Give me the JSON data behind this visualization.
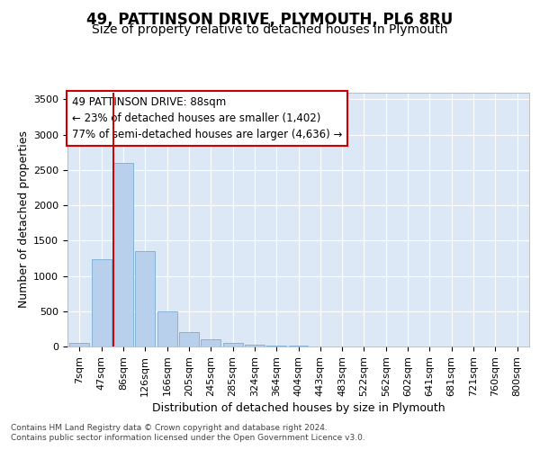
{
  "title": "49, PATTINSON DRIVE, PLYMOUTH, PL6 8RU",
  "subtitle": "Size of property relative to detached houses in Plymouth",
  "xlabel": "Distribution of detached houses by size in Plymouth",
  "ylabel": "Number of detached properties",
  "categories": [
    "7sqm",
    "47sqm",
    "86sqm",
    "126sqm",
    "166sqm",
    "205sqm",
    "245sqm",
    "285sqm",
    "324sqm",
    "364sqm",
    "404sqm",
    "443sqm",
    "483sqm",
    "522sqm",
    "562sqm",
    "602sqm",
    "641sqm",
    "681sqm",
    "721sqm",
    "760sqm",
    "800sqm"
  ],
  "values": [
    45,
    1230,
    2600,
    1350,
    500,
    200,
    105,
    50,
    30,
    18,
    10,
    5,
    3,
    0,
    0,
    0,
    0,
    0,
    0,
    0,
    0
  ],
  "bar_color": "#b8d0ec",
  "bar_edge_color": "#7aadd4",
  "vline_xidx": 2,
  "vline_color": "#cc0000",
  "annotation_line1": "49 PATTINSON DRIVE: 88sqm",
  "annotation_line2": "← 23% of detached houses are smaller (1,402)",
  "annotation_line3": "77% of semi-detached houses are larger (4,636) →",
  "annotation_box_facecolor": "#ffffff",
  "annotation_box_edgecolor": "#cc0000",
  "ylim": [
    0,
    3600
  ],
  "yticks": [
    0,
    500,
    1000,
    1500,
    2000,
    2500,
    3000,
    3500
  ],
  "plot_bg_color": "#dce8f5",
  "fig_bg_color": "#ffffff",
  "grid_color": "#ffffff",
  "footer1": "Contains HM Land Registry data © Crown copyright and database right 2024.",
  "footer2": "Contains public sector information licensed under the Open Government Licence v3.0.",
  "title_fontsize": 12,
  "subtitle_fontsize": 10,
  "axis_label_fontsize": 9,
  "tick_fontsize": 8,
  "annotation_fontsize": 8.5,
  "footer_fontsize": 6.5
}
